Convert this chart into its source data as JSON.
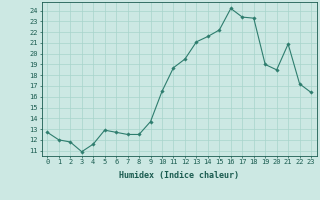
{
  "x": [
    0,
    1,
    2,
    3,
    4,
    5,
    6,
    7,
    8,
    9,
    10,
    11,
    12,
    13,
    14,
    15,
    16,
    17,
    18,
    19,
    20,
    21,
    22,
    23
  ],
  "y": [
    12.7,
    12.0,
    11.8,
    10.9,
    11.6,
    12.9,
    12.7,
    12.5,
    12.5,
    13.7,
    16.5,
    18.7,
    19.5,
    21.1,
    21.6,
    22.2,
    24.2,
    23.4,
    23.3,
    19.0,
    18.5,
    20.9,
    17.2,
    16.4
  ],
  "line_color": "#2e7d6e",
  "marker": "D",
  "marker_size": 1.8,
  "line_width": 0.8,
  "bg_color": "#cce8e3",
  "grid_color": "#a8d4cc",
  "xlabel": "Humidex (Indice chaleur)",
  "ylabel_ticks": [
    11,
    12,
    13,
    14,
    15,
    16,
    17,
    18,
    19,
    20,
    21,
    22,
    23,
    24
  ],
  "ylim": [
    10.5,
    24.8
  ],
  "xlim": [
    -0.5,
    23.5
  ],
  "tick_fontsize": 5.0,
  "xlabel_fontsize": 6.0,
  "axis_color": "#1a5c50"
}
